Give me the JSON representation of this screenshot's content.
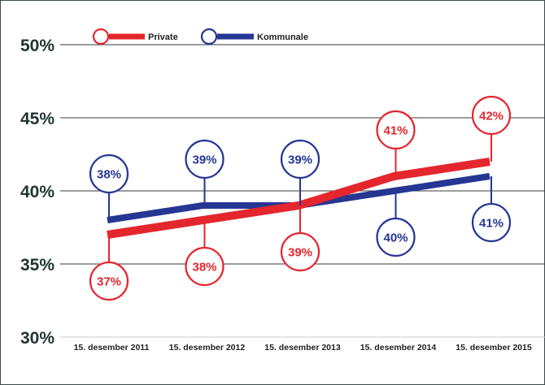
{
  "chart_data": {
    "type": "line",
    "title": "",
    "xlabel": "",
    "ylabel": "",
    "categories": [
      "15. desember 2011",
      "15. desember 2012",
      "15. desember 2013",
      "15. desember 2014",
      "15. desember 2015"
    ],
    "ylim": [
      30,
      50
    ],
    "yticks": [
      30,
      35,
      40,
      45,
      50
    ],
    "ytick_labels": [
      "30%",
      "35%",
      "40%",
      "45%",
      "50%"
    ],
    "grid": true,
    "legend_position": "top-left",
    "series": [
      {
        "name": "Private",
        "color": "#e4262d",
        "values": [
          37,
          38,
          39,
          41,
          42
        ],
        "labels": [
          "37%",
          "38%",
          "39%",
          "41%",
          "42%"
        ],
        "label_side": [
          "below",
          "below",
          "below",
          "above",
          "above"
        ]
      },
      {
        "name": "Kommunale",
        "color": "#253693",
        "values": [
          38,
          39,
          39,
          40,
          41
        ],
        "labels": [
          "38%",
          "39%",
          "39%",
          "40%",
          "41%"
        ],
        "label_side": [
          "above",
          "above",
          "above",
          "below",
          "below"
        ]
      }
    ]
  },
  "colors": {
    "axis_text": "#1f3532",
    "grid": "#3a3a3a",
    "axis_line": "#c8c8c8"
  }
}
